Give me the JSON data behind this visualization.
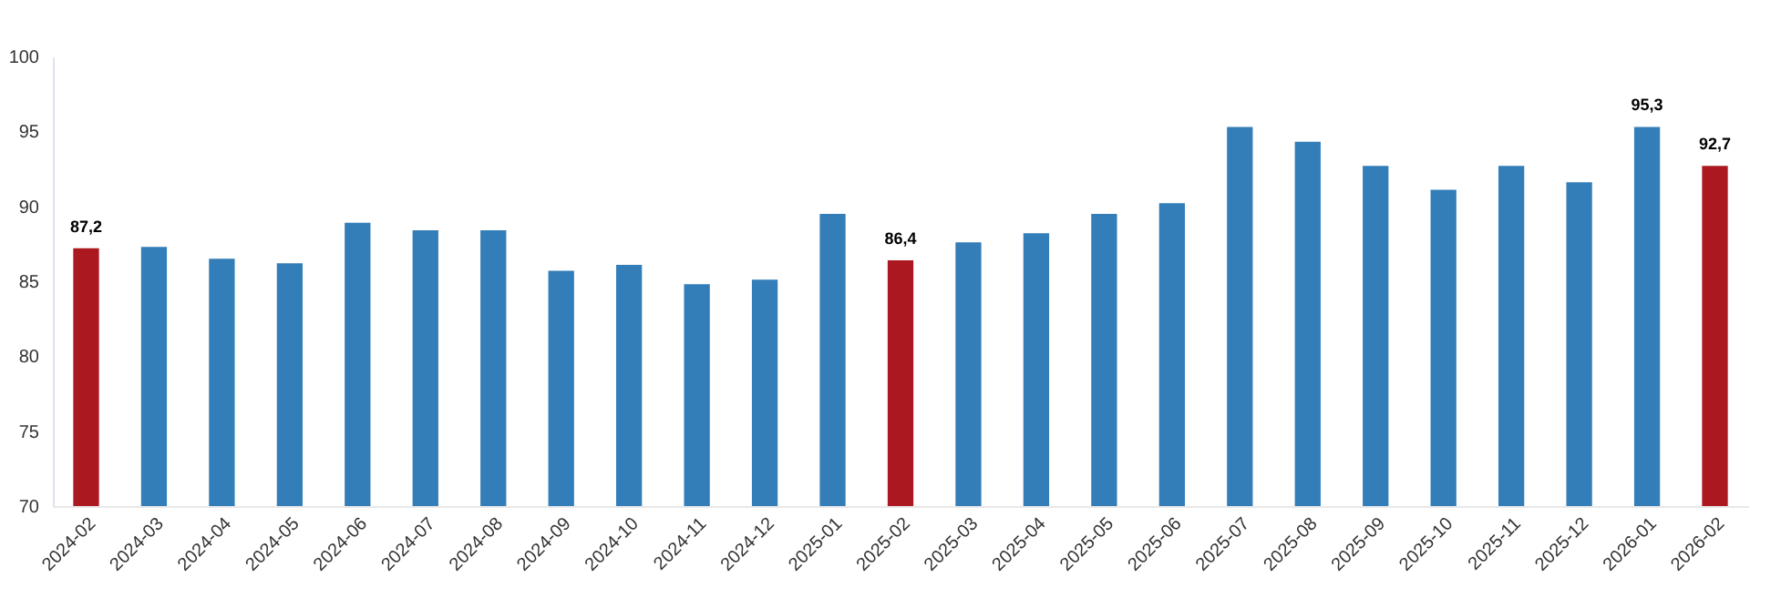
{
  "chart_data": {
    "type": "bar",
    "categories": [
      "2024-02",
      "2024-03",
      "2024-04",
      "2024-05",
      "2024-06",
      "2024-07",
      "2024-08",
      "2024-09",
      "2024-10",
      "2024-11",
      "2024-12",
      "2025-01",
      "2025-02",
      "2025-03",
      "2025-04",
      "2025-05",
      "2025-06",
      "2025-07",
      "2025-08",
      "2025-09",
      "2025-10",
      "2025-11",
      "2025-12",
      "2026-01",
      "2026-02"
    ],
    "values": [
      87.2,
      87.3,
      86.5,
      86.2,
      88.9,
      88.4,
      88.4,
      85.7,
      86.1,
      84.8,
      85.1,
      89.5,
      86.4,
      87.6,
      88.2,
      89.5,
      90.2,
      95.3,
      94.3,
      92.7,
      91.1,
      92.7,
      91.6,
      95.3,
      92.7
    ],
    "colors": [
      "#ab1820",
      "#337eb8",
      "#337eb8",
      "#337eb8",
      "#337eb8",
      "#337eb8",
      "#337eb8",
      "#337eb8",
      "#337eb8",
      "#337eb8",
      "#337eb8",
      "#337eb8",
      "#ab1820",
      "#337eb8",
      "#337eb8",
      "#337eb8",
      "#337eb8",
      "#337eb8",
      "#337eb8",
      "#337eb8",
      "#337eb8",
      "#337eb8",
      "#337eb8",
      "#337eb8",
      "#ab1820"
    ],
    "value_labels": [
      "87,2",
      null,
      null,
      null,
      null,
      null,
      null,
      null,
      null,
      null,
      null,
      null,
      "86,4",
      null,
      null,
      null,
      null,
      null,
      null,
      null,
      null,
      null,
      null,
      "95,3",
      "92,7"
    ],
    "ylim": [
      70,
      100
    ],
    "yticks": [
      70,
      75,
      80,
      85,
      90,
      95,
      100
    ],
    "grid": false,
    "legend": false
  }
}
